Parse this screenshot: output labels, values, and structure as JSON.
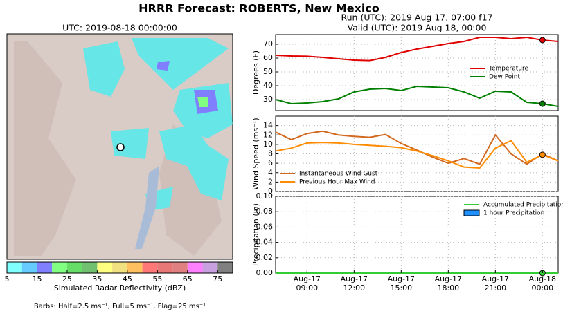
{
  "title": "HRRR Forecast: ROBERTS, New Mexico",
  "run": "Run (UTC): 2019 Aug 17, 07:00 f17",
  "valid": "Valid (UTC): 2019 Aug 18, 00:00",
  "chart_data": [
    {
      "type": "colorbar",
      "title": "UTC: 2019-08-18 00:00:00",
      "xlabel": "Simulated Radar Reflectivity (dBZ)",
      "note": "Barbs: Half=2.5 ms⁻¹, Full=5 ms⁻¹, Flag=25 ms⁻¹",
      "bins": [
        5,
        10,
        15,
        20,
        25,
        30,
        35,
        40,
        45,
        50,
        55,
        60,
        65,
        70,
        75,
        80
      ],
      "colors": [
        "#80ffff",
        "#66ccff",
        "#8080ff",
        "#80ff80",
        "#66dd66",
        "#70c070",
        "#ffff80",
        "#f0e080",
        "#ffc060",
        "#ff7878",
        "#e87878",
        "#e08080",
        "#ff80ff",
        "#c8a0e0",
        "#808080"
      ],
      "xlim": [
        5,
        80
      ],
      "xticks": [
        5,
        15,
        25,
        35,
        45,
        55,
        65,
        75
      ]
    },
    {
      "type": "line",
      "ylabel": "Degrees (F)",
      "ylim": [
        22,
        77
      ],
      "yticks": [
        30,
        40,
        50,
        60,
        70
      ],
      "grid": true,
      "legend": "right",
      "marker_x": "Aug-18 00:00",
      "xlim": [
        "Aug-17 07:00",
        "Aug-18 01:00"
      ],
      "x": [
        "Aug-17 07:00",
        "Aug-17 08:00",
        "Aug-17 09:00",
        "Aug-17 10:00",
        "Aug-17 11:00",
        "Aug-17 12:00",
        "Aug-17 13:00",
        "Aug-17 14:00",
        "Aug-17 15:00",
        "Aug-17 16:00",
        "Aug-17 17:00",
        "Aug-17 18:00",
        "Aug-17 19:00",
        "Aug-17 20:00",
        "Aug-17 21:00",
        "Aug-17 22:00",
        "Aug-17 23:00",
        "Aug-18 00:00",
        "Aug-18 01:00"
      ],
      "series": [
        {
          "name": "Temperature",
          "color": "#e00000",
          "values": [
            62,
            61.5,
            61.3,
            60.5,
            59.5,
            58.5,
            58.2,
            60.5,
            64,
            66.5,
            68.5,
            70.5,
            72,
            75,
            75,
            74,
            75,
            73,
            72
          ]
        },
        {
          "name": "Dew Point",
          "color": "#008000",
          "values": [
            30,
            27,
            27.5,
            28.5,
            30.5,
            35.5,
            37.5,
            38,
            36.5,
            39.5,
            39,
            38.5,
            35.5,
            31,
            36,
            35.5,
            28,
            27,
            25
          ]
        }
      ]
    },
    {
      "type": "line",
      "ylabel": "Wind Speed (ms⁻¹)",
      "ylim": [
        0,
        16
      ],
      "yticks": [
        0,
        2,
        4,
        6,
        8,
        10,
        12,
        14
      ],
      "grid": true,
      "legend": "lower left",
      "marker_x": "Aug-18 00:00",
      "xlim": [
        "Aug-17 07:00",
        "Aug-18 01:00"
      ],
      "x": [
        "Aug-17 07:00",
        "Aug-17 08:00",
        "Aug-17 09:00",
        "Aug-17 10:00",
        "Aug-17 11:00",
        "Aug-17 12:00",
        "Aug-17 13:00",
        "Aug-17 14:00",
        "Aug-17 15:00",
        "Aug-17 16:00",
        "Aug-17 17:00",
        "Aug-17 18:00",
        "Aug-17 19:00",
        "Aug-17 20:00",
        "Aug-17 21:00",
        "Aug-17 22:00",
        "Aug-17 23:00",
        "Aug-18 00:00",
        "Aug-18 01:00"
      ],
      "series": [
        {
          "name": "Instantaneous Wind Gust",
          "color": "#d2691e",
          "values": [
            12.6,
            11.0,
            12.3,
            12.8,
            12.0,
            11.7,
            11.5,
            12.1,
            10.2,
            8.8,
            7.3,
            6.0,
            7.0,
            5.8,
            12.0,
            8.0,
            5.8,
            8.0,
            6.5
          ]
        },
        {
          "name": "Previous Hour Max Wind",
          "color": "#ff8c00",
          "values": [
            8.6,
            9.2,
            10.3,
            10.4,
            10.3,
            10.0,
            9.8,
            9.6,
            9.3,
            8.6,
            7.6,
            6.5,
            5.2,
            5.0,
            9.2,
            10.8,
            6.2,
            7.8,
            6.5
          ],
          "marker": true
        }
      ]
    },
    {
      "type": "line",
      "ylabel": "Precipitation (in)",
      "ylim": [
        0,
        0.1
      ],
      "yticks": [
        {
          "value": 0,
          "label": "0.00"
        },
        {
          "value": 0.02,
          "label": "0.02"
        },
        {
          "value": 0.04,
          "label": "0.04"
        },
        {
          "value": 0.06,
          "label": "0.06"
        },
        {
          "value": 0.08,
          "label": "0.08"
        },
        {
          "value": 0.1,
          "label": "0.10"
        }
      ],
      "grid": true,
      "legend": "upper right",
      "marker_x": "Aug-18 00:00",
      "xlim": [
        "Aug-17 07:00",
        "Aug-18 01:00"
      ],
      "xticks": [
        {
          "value": "Aug-17 09:00",
          "label": [
            "Aug-17",
            "09:00"
          ]
        },
        {
          "value": "Aug-17 12:00",
          "label": [
            "Aug-17",
            "12:00"
          ]
        },
        {
          "value": "Aug-17 15:00",
          "label": [
            "Aug-17",
            "15:00"
          ]
        },
        {
          "value": "Aug-17 18:00",
          "label": [
            "Aug-17",
            "18:00"
          ]
        },
        {
          "value": "Aug-17 21:00",
          "label": [
            "Aug-17",
            "21:00"
          ]
        },
        {
          "value": "Aug-18 00:00",
          "label": [
            "Aug-18",
            "00:00"
          ]
        }
      ],
      "x": [
        "Aug-17 07:00",
        "Aug-17 08:00",
        "Aug-17 09:00",
        "Aug-17 10:00",
        "Aug-17 11:00",
        "Aug-17 12:00",
        "Aug-17 13:00",
        "Aug-17 14:00",
        "Aug-17 15:00",
        "Aug-17 16:00",
        "Aug-17 17:00",
        "Aug-17 18:00",
        "Aug-17 19:00",
        "Aug-17 20:00",
        "Aug-17 21:00",
        "Aug-17 22:00",
        "Aug-17 23:00",
        "Aug-18 00:00",
        "Aug-18 01:00"
      ],
      "series": [
        {
          "name": "Accumulated Precipitation",
          "color": "#32cd32",
          "kind": "line",
          "values": [
            0,
            0,
            0,
            0,
            0,
            0,
            0,
            0,
            0,
            0,
            0,
            0,
            0,
            0,
            0,
            0,
            0,
            0,
            0
          ]
        },
        {
          "name": "1 hour Precipitation",
          "color": "#1e90ff",
          "kind": "bar",
          "values": [
            0,
            0,
            0,
            0,
            0,
            0,
            0,
            0,
            0,
            0,
            0,
            0,
            0,
            0,
            0,
            0,
            0,
            0,
            0
          ]
        }
      ]
    }
  ]
}
